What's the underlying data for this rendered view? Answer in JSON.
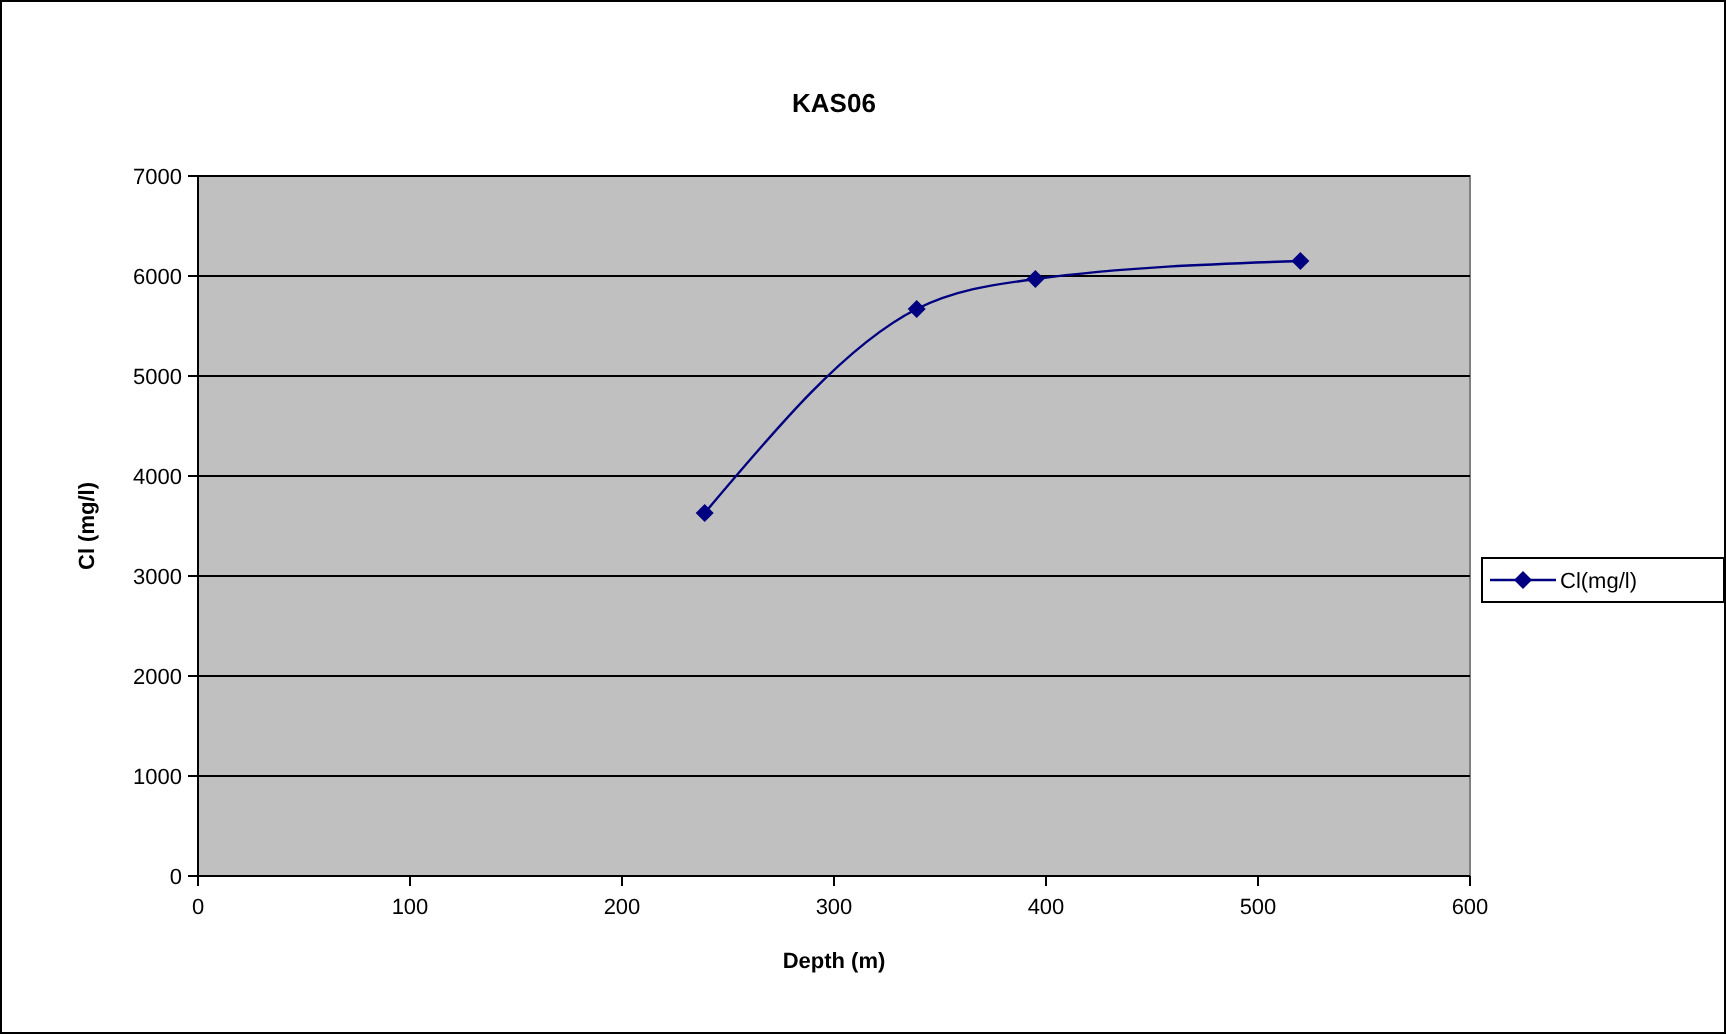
{
  "chart_data": {
    "type": "line",
    "title": "KAS06",
    "xlabel": "Depth (m)",
    "ylabel": "Cl (mg/l)",
    "x": [
      239,
      339,
      395,
      520
    ],
    "series": [
      {
        "name": "Cl(mg/l)",
        "color": "#000080",
        "values": [
          3630,
          5670,
          5970,
          6150
        ]
      }
    ],
    "xlim": [
      0,
      600
    ],
    "xticks": [
      0,
      100,
      200,
      300,
      400,
      500,
      600
    ],
    "ylim": [
      0,
      7000
    ],
    "yticks": [
      0,
      1000,
      2000,
      3000,
      4000,
      5000,
      6000,
      7000
    ],
    "grid": "y",
    "legend": "right",
    "marker": "diamond"
  }
}
